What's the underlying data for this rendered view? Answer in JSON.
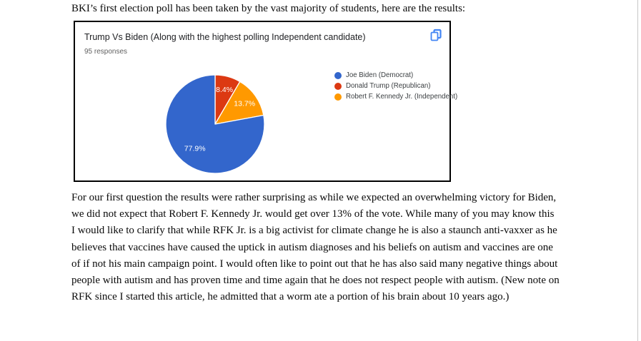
{
  "page": {
    "intro_line": "BKI’s first election poll has been taken by the vast majority of students, here are the results:",
    "body_paragraph": "For our first question the results were rather surprising as while we expected an overwhelming victory for Biden, we did not expect that Robert F. Kennedy Jr. would get over 13% of the vote. While many of you may know this I would like to clarify that while RFK Jr. is a big activist for climate change he is also a staunch anti-vaxxer as he believes that vaccines have caused the uptick in autism diagnoses and his beliefs on autism and vaccines are one of if not his main campaign point. I would often like to point out that he has also said many negative things about people with autism and has proven time and time again that he does not respect people with autism. (New note on RFK since I started this article, he admitted that a worm ate a portion of his brain about 10 years ago.)"
  },
  "chart_card": {
    "title": "Trump Vs Biden (Along with the highest polling Independent candidate)",
    "responses_label": "95 responses",
    "copy_icon": "copy-chart-icon",
    "copy_icon_color": "#4285F4"
  },
  "chart_data": {
    "type": "pie",
    "title": "Trump Vs Biden (Along with the highest polling Independent candidate)",
    "subtitle": "95 responses",
    "total_responses": 95,
    "labels": [
      "Joe Biden (Democrat)",
      "Donald Trump (Republican)",
      "Robert F. Kennedy Jr. (Independent)"
    ],
    "values_percent": [
      77.9,
      8.4,
      13.7
    ],
    "value_labels": [
      "77.9%",
      "8.4%",
      "13.7%"
    ],
    "colors": [
      "#3366CC",
      "#DC3912",
      "#FF9900"
    ],
    "label_text_color": "#ffffff",
    "legend_position": "right",
    "start_angle_deg": 0,
    "draw_order": [
      1,
      2,
      0
    ]
  }
}
